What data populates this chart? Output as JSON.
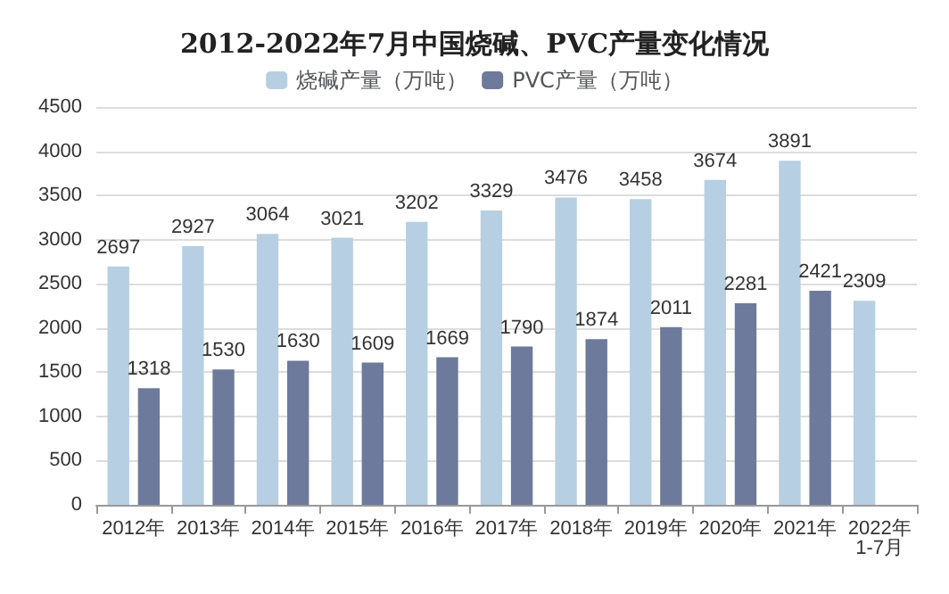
{
  "chart_data": {
    "type": "bar",
    "title": "2012-2022年7月中国烧碱、PVC产量变化情况",
    "categories": [
      "2012年",
      "2013年",
      "2014年",
      "2015年",
      "2016年",
      "2017年",
      "2018年",
      "2019年",
      "2020年",
      "2021年",
      "2022年1-7月"
    ],
    "series": [
      {
        "name": "烧碱产量（万吨）",
        "color": "#b7cfe2",
        "values": [
          2697,
          2927,
          3064,
          3021,
          3202,
          3329,
          3476,
          3458,
          3674,
          3891,
          2309
        ]
      },
      {
        "name": "PVC产量（万吨）",
        "color": "#6d7a9b",
        "values": [
          1318,
          1530,
          1630,
          1609,
          1669,
          1790,
          1874,
          2011,
          2281,
          2421,
          null
        ]
      }
    ],
    "ylim": [
      0,
      4500
    ],
    "yticks": [
      0,
      500,
      1000,
      1500,
      2000,
      2500,
      3000,
      3500,
      4000,
      4500
    ],
    "grid": "y",
    "legend": "top",
    "data_labels": true
  }
}
